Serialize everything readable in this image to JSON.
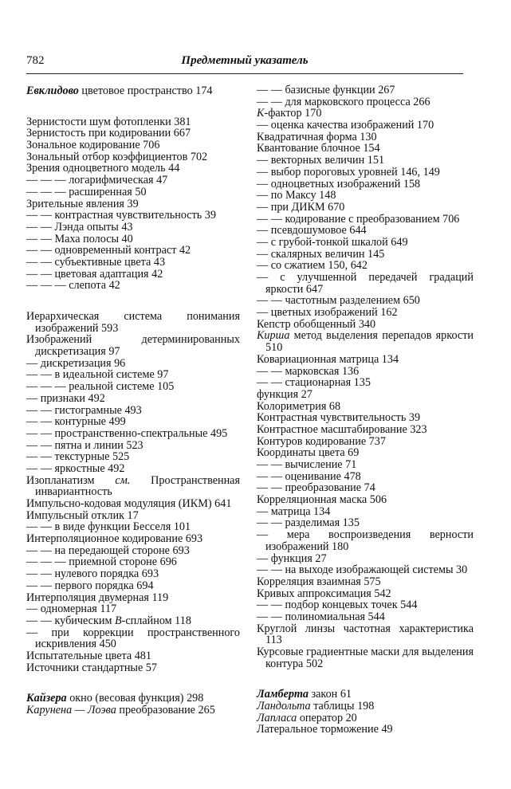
{
  "header": {
    "page_number": "782",
    "title": "Предметный указатель"
  },
  "left_column": [
    [
      {
        "bi": "Евклидово",
        "b": " цветовое пространство 174"
      }
    ],
    [
      {
        "a": "Зернистости шум фотопленки 381"
      },
      {
        "a": "Зернистость при кодировании 667"
      },
      {
        "a": "Зональное кодирование 706"
      },
      {
        "a": "Зональный отбор коэффициентов 702"
      },
      {
        "a": "Зрения одноцветного модель 44"
      },
      {
        "a": "— — — логарифмическая 47"
      },
      {
        "a": "— — — расширенная 50"
      },
      {
        "a": "Зрительные явления 39"
      },
      {
        "a": "— — контрастная чувствительность 39"
      },
      {
        "a": "— — Лэнда опыты 43"
      },
      {
        "a": "— — Маха полосы 40"
      },
      {
        "a": "— — одновременный контраст 42"
      },
      {
        "a": "— — субъективные цвета 43"
      },
      {
        "a": "— — цветовая адаптация 42"
      },
      {
        "a": "— — — слепота 42"
      }
    ],
    [
      {
        "a": "Иерархическая система понимания изображений 593"
      },
      {
        "a": "Изображений детерминированных дискретизация 97"
      },
      {
        "a": "— дискретизация 96"
      },
      {
        "a": "— — в идеальной системе 97"
      },
      {
        "a": "— — — реальной системе 105"
      },
      {
        "a": "— признаки 492"
      },
      {
        "a": "— — гистограмные 493"
      },
      {
        "a": "— — контурные 499"
      },
      {
        "a": "— — пространственно-спектральные 495"
      },
      {
        "a": "— — пятна и линии 523"
      },
      {
        "a": "— — текстурные 525"
      },
      {
        "a": "— — яркостные 492"
      },
      {
        "a": "Изопланатизм ",
        "i": "см.",
        "b": " Пространственная инвариантность"
      },
      {
        "a": "Импульсно-кодовая модуляция (ИКМ) 641"
      },
      {
        "a": "Импульсный отклик 17"
      },
      {
        "a": "— — в виде функции Бесселя 101"
      },
      {
        "a": "Интерполяционное кодирование 693"
      },
      {
        "a": "— — на передающей стороне 693"
      },
      {
        "a": "— — — приемной стороне 696"
      },
      {
        "a": "— — нулевого порядка 693"
      },
      {
        "a": "— — первого порядка 694"
      },
      {
        "a": "Интерполяция двумерная 119"
      },
      {
        "a": "— одномерная 117"
      },
      {
        "a": "— — кубическим ",
        "i": "B",
        "b": "-сплайном 118"
      },
      {
        "a": "— при коррекции пространственного искривления 450"
      },
      {
        "a": "Испытательные цвета 481"
      },
      {
        "a": "Источники стандартные 57"
      }
    ],
    [
      {
        "bi": "Кайзера",
        "b": " окно (весовая функция) 298"
      },
      {
        "i": "Карунена — Лоэва",
        "b": " преобразование 265"
      }
    ]
  ],
  "right_column": [
    [
      {
        "a": "— — базисные функции 267"
      },
      {
        "a": "— — для марковского процесса 266"
      },
      {
        "i": "K",
        "b": "-фактор 170"
      },
      {
        "a": "— оценка качества изображений 170"
      },
      {
        "a": "Квадратичная форма 130"
      },
      {
        "a": "Квантование блочное 154"
      },
      {
        "a": "— векторных величин 151"
      },
      {
        "a": "— выбор пороговых уровней 146, 149"
      },
      {
        "a": "— одноцветных изображений 158"
      },
      {
        "a": "— по Максу 148"
      },
      {
        "a": "— при ДИКМ 670"
      },
      {
        "a": "— — кодирование с преобразованием 706"
      },
      {
        "a": "— псевдошумовое 644"
      },
      {
        "a": "— с грубой-тонкой шкалой 649"
      },
      {
        "a": "— скалярных величин 145"
      },
      {
        "a": "— со сжатием 150, 642"
      },
      {
        "a": "— с улучшенной передачей градаций яркости 647"
      },
      {
        "a": "— — частотным разделением 650"
      },
      {
        "a": "— цветных изображений 162"
      },
      {
        "a": "Кепстр обобщенный 340"
      },
      {
        "i": "Кирша",
        "b": " метод выделения перепадов яркости 510"
      },
      {
        "a": "Ковариационная матрица 134"
      },
      {
        "a": "— — марковская 136"
      },
      {
        "a": "— — стационарная 135"
      },
      {
        "a": "функция 27"
      },
      {
        "a": "Колориметрия 68"
      },
      {
        "a": "Контрастная чувствительность 39"
      },
      {
        "a": "Контрастное масштабирование 323"
      },
      {
        "a": "Контуров кодирование 737"
      },
      {
        "a": "Координаты цвета 69"
      },
      {
        "a": "— — вычисление 71"
      },
      {
        "a": "— — оценивание 478"
      },
      {
        "a": "— — преобразование 74"
      },
      {
        "a": "Корреляционная маска 506"
      },
      {
        "a": "— матрица 134"
      },
      {
        "a": "— — разделимая 135"
      },
      {
        "a": "— мера воспроизведения верности изображений 180"
      },
      {
        "a": "— функция 27"
      },
      {
        "a": "— — на выходе изображающей системы 30"
      },
      {
        "a": "Корреляция взаимная 575"
      },
      {
        "a": "Кривых аппроксимация 542"
      },
      {
        "a": "— — подбор концевых точек 544"
      },
      {
        "a": "— — полиномиальная 544"
      },
      {
        "a": "Круглой линзы частотная характеристика 113"
      },
      {
        "a": "Курсовые градиентные маски для выделения контура 502"
      }
    ],
    [
      {
        "bi": "Ламберта",
        "b": " закон 61"
      },
      {
        "i": "Ландольта",
        "b": " таблицы 198"
      },
      {
        "i": "Лапласа",
        "b": " оператор 20"
      },
      {
        "a": "Латеральное торможение 49"
      }
    ]
  ]
}
